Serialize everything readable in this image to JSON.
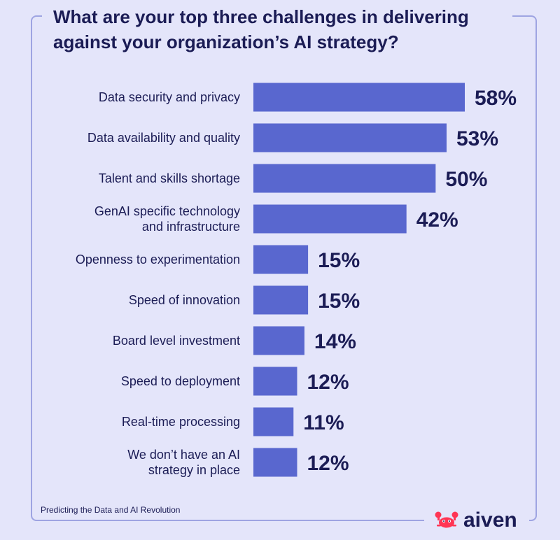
{
  "title": "What are your top three challenges in delivering\nagainst your organization’s AI strategy?",
  "source": "Predicting the Data and AI Revolution",
  "brand": {
    "name": "aiven",
    "logo_icon": "crab-icon",
    "logo_color": "#ff3554"
  },
  "colors": {
    "background": "#e4e5fa",
    "bar": "#5967cf",
    "text": "#1b1c55",
    "frame": "#9ea4e2"
  },
  "chart_data": {
    "type": "bar",
    "orientation": "horizontal",
    "title": "What are your top three challenges in delivering against your organization’s AI strategy?",
    "categories": [
      [
        "Data security and privacy"
      ],
      [
        "Data availability and quality"
      ],
      [
        "Talent and skills shortage"
      ],
      [
        "GenAI specific technology",
        "and infrastructure"
      ],
      [
        "Openness to experimentation"
      ],
      [
        "Speed of innovation"
      ],
      [
        "Board level investment"
      ],
      [
        "Speed to deployment"
      ],
      [
        "Real-time processing"
      ],
      [
        "We don’t have an AI",
        "strategy in place"
      ]
    ],
    "values": [
      58,
      53,
      50,
      42,
      15,
      15,
      14,
      12,
      11,
      12
    ],
    "value_labels": [
      "58%",
      "53%",
      "50%",
      "42%",
      "15%",
      "15%",
      "14%",
      "12%",
      "11%",
      "12%"
    ],
    "unit": "%",
    "grid": false,
    "legend": "none"
  }
}
